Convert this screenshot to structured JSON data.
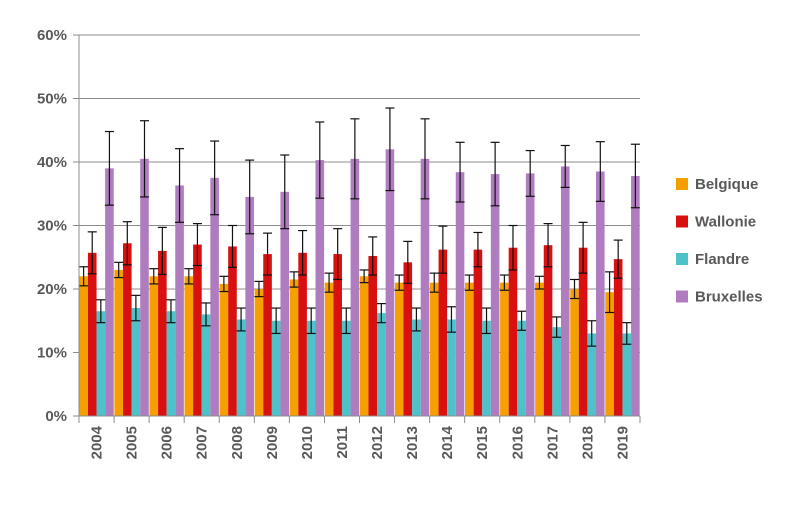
{
  "chart_data": {
    "type": "bar",
    "title": "",
    "xlabel": "",
    "ylabel": "",
    "ylim": [
      0,
      60
    ],
    "y_tick_labels": [
      "0%",
      "10%",
      "20%",
      "30%",
      "40%",
      "50%",
      "60%"
    ],
    "categories": [
      "2004",
      "2005",
      "2006",
      "2007",
      "2008",
      "2009",
      "2010",
      "2011",
      "2012",
      "2013",
      "2014",
      "2015",
      "2016",
      "2017",
      "2018",
      "2019"
    ],
    "grid": "horizontal",
    "legend_position": "right",
    "error_bars": true,
    "series": [
      {
        "name": "Belgique",
        "color": "#F5A000",
        "values": [
          22.0,
          23.0,
          22.0,
          22.0,
          20.8,
          20.0,
          21.5,
          21.0,
          22.0,
          21.0,
          21.0,
          21.0,
          21.0,
          21.0,
          20.0,
          19.5
        ],
        "error": [
          1.5,
          1.2,
          1.2,
          1.2,
          1.2,
          1.2,
          1.2,
          1.5,
          1.0,
          1.2,
          1.5,
          1.2,
          1.2,
          1.0,
          1.5,
          3.2
        ]
      },
      {
        "name": "Wallonie",
        "color": "#D81010",
        "values": [
          25.7,
          27.2,
          26.0,
          27.0,
          26.7,
          25.5,
          25.7,
          25.5,
          25.2,
          24.2,
          26.2,
          26.2,
          26.5,
          26.9,
          26.5,
          24.7
        ],
        "error": [
          3.3,
          3.4,
          3.7,
          3.3,
          3.3,
          3.3,
          3.5,
          4.0,
          3.0,
          3.3,
          3.7,
          2.7,
          3.5,
          3.4,
          4.0,
          3.0
        ]
      },
      {
        "name": "Flandre",
        "color": "#4FC1C9",
        "values": [
          16.5,
          17.0,
          16.5,
          16.0,
          15.2,
          15.0,
          15.0,
          15.0,
          16.2,
          15.2,
          15.2,
          15.0,
          15.0,
          14.0,
          13.0,
          13.0
        ],
        "error": [
          1.8,
          2.0,
          1.8,
          1.8,
          1.8,
          2.0,
          2.0,
          2.0,
          1.5,
          1.8,
          2.0,
          2.0,
          1.5,
          1.6,
          2.0,
          1.7
        ]
      },
      {
        "name": "Bruxelles",
        "color": "#B07CC0",
        "values": [
          39.0,
          40.5,
          36.3,
          37.5,
          34.5,
          35.3,
          40.3,
          40.5,
          42.0,
          40.5,
          38.4,
          38.1,
          38.2,
          39.3,
          38.5,
          37.8
        ],
        "error": [
          5.8,
          6.0,
          5.8,
          5.8,
          5.8,
          5.8,
          6.0,
          6.3,
          6.5,
          6.3,
          4.7,
          5.0,
          3.6,
          3.3,
          4.7,
          5.0
        ]
      }
    ]
  }
}
